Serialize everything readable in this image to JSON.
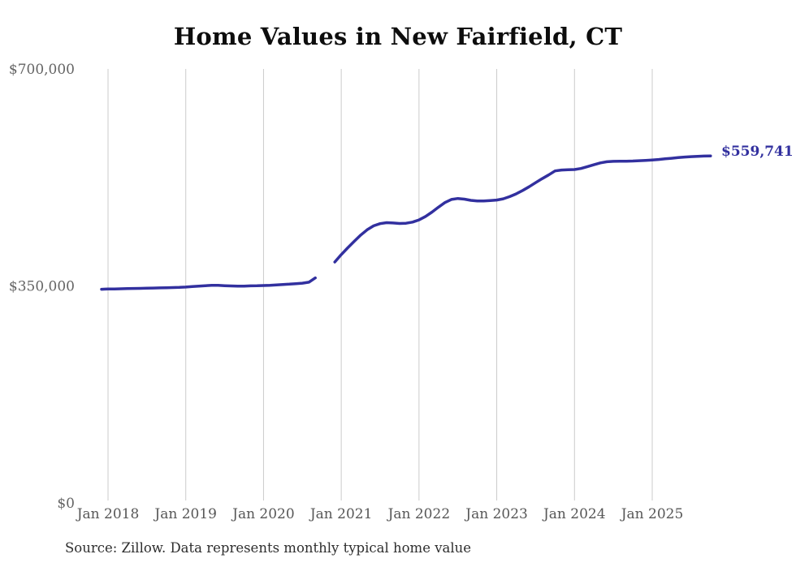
{
  "header": {
    "title": "Home Values in New Fairfield, CT"
  },
  "footer": {
    "source": "Source: Zillow. Data represents monthly typical home value"
  },
  "chart_data": {
    "type": "line",
    "title": "Home Values in New Fairfield, CT",
    "series_name": "Monthly typical home value",
    "line_color": "#32309f",
    "grid_color": "#cbcbcb",
    "background_color": "#ffffff",
    "legend": "none",
    "grid": "vertical-only",
    "end_label": "$559,741",
    "last_value": 559741,
    "gap_months": [
      "2020-10",
      "2020-11"
    ],
    "y_axis": {
      "min": 0,
      "max": 700000,
      "ticks": [
        {
          "value": 0,
          "label": "$0"
        },
        {
          "value": 350000,
          "label": "$350,000"
        },
        {
          "value": 700000,
          "label": "$700,000"
        }
      ]
    },
    "x_axis": {
      "ticks": [
        {
          "month": "2018-01",
          "label": "Jan 2018"
        },
        {
          "month": "2019-01",
          "label": "Jan 2019"
        },
        {
          "month": "2020-01",
          "label": "Jan 2020"
        },
        {
          "month": "2021-01",
          "label": "Jan 2021"
        },
        {
          "month": "2022-01",
          "label": "Jan 2022"
        },
        {
          "month": "2023-01",
          "label": "Jan 2023"
        },
        {
          "month": "2024-01",
          "label": "Jan 2024"
        },
        {
          "month": "2025-01",
          "label": "Jan 2025"
        }
      ]
    },
    "months": [
      "2017-12",
      "2018-01",
      "2018-02",
      "2018-03",
      "2018-04",
      "2018-05",
      "2018-06",
      "2018-07",
      "2018-08",
      "2018-09",
      "2018-10",
      "2018-11",
      "2018-12",
      "2019-01",
      "2019-02",
      "2019-03",
      "2019-04",
      "2019-05",
      "2019-06",
      "2019-07",
      "2019-08",
      "2019-09",
      "2019-10",
      "2019-11",
      "2019-12",
      "2020-01",
      "2020-02",
      "2020-03",
      "2020-04",
      "2020-05",
      "2020-06",
      "2020-07",
      "2020-08",
      "2020-09",
      "2020-10",
      "2020-11",
      "2020-12",
      "2021-01",
      "2021-02",
      "2021-03",
      "2021-04",
      "2021-05",
      "2021-06",
      "2021-07",
      "2021-08",
      "2021-09",
      "2021-10",
      "2021-11",
      "2021-12",
      "2022-01",
      "2022-02",
      "2022-03",
      "2022-04",
      "2022-05",
      "2022-06",
      "2022-07",
      "2022-08",
      "2022-09",
      "2022-10",
      "2022-11",
      "2022-12",
      "2023-01",
      "2023-02",
      "2023-03",
      "2023-04",
      "2023-05",
      "2023-06",
      "2023-07",
      "2023-08",
      "2023-09",
      "2023-10",
      "2023-11",
      "2023-12",
      "2024-01",
      "2024-02",
      "2024-03",
      "2024-04",
      "2024-05",
      "2024-06",
      "2024-07",
      "2024-08",
      "2024-09",
      "2024-10",
      "2024-11",
      "2024-12",
      "2025-01",
      "2025-02",
      "2025-03",
      "2025-04",
      "2025-05",
      "2025-06",
      "2025-07",
      "2025-08",
      "2025-09",
      "2025-10"
    ],
    "values": [
      344600,
      345000,
      345200,
      345400,
      345700,
      345900,
      346100,
      346400,
      346600,
      346900,
      347100,
      347400,
      347700,
      348200,
      348900,
      349700,
      350400,
      350900,
      350900,
      350400,
      350000,
      349700,
      349800,
      350100,
      350300,
      350600,
      351100,
      351700,
      352300,
      352900,
      353600,
      354500,
      356000,
      363000,
      null,
      null,
      388600,
      400500,
      411500,
      422000,
      432000,
      440500,
      447000,
      450500,
      452000,
      451500,
      450800,
      451200,
      453000,
      456500,
      462000,
      469000,
      477000,
      484500,
      489500,
      491000,
      490000,
      488000,
      487000,
      487000,
      487800,
      488500,
      490500,
      494000,
      498500,
      504000,
      510000,
      516500,
      523000,
      529000,
      535500,
      537000,
      537500,
      537800,
      539500,
      542500,
      545500,
      548500,
      550300,
      551000,
      551200,
      551200,
      551500,
      552000,
      552600,
      553200,
      554000,
      555000,
      556000,
      557000,
      557900,
      558600,
      559100,
      559500,
      559741
    ]
  }
}
